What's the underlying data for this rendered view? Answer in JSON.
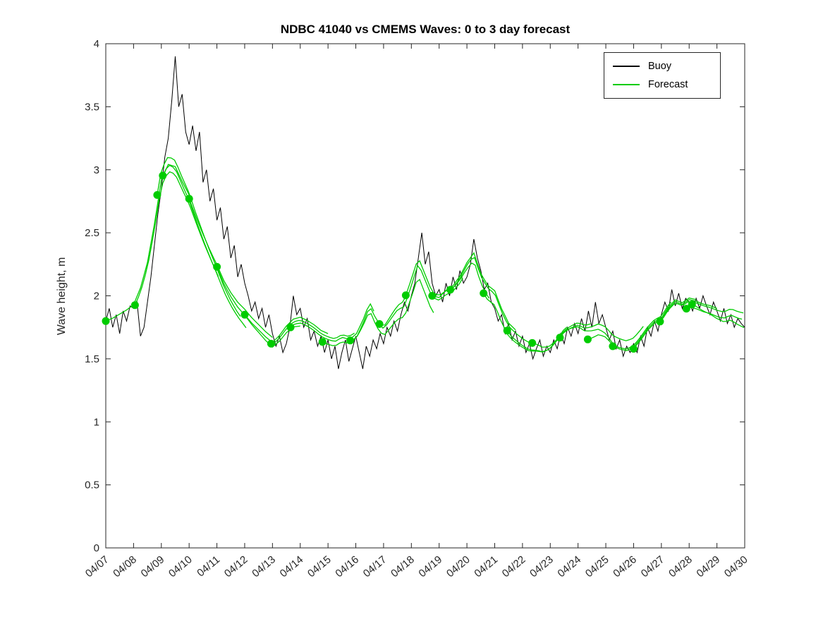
{
  "chart_data": {
    "type": "line",
    "title": "NDBC 41040 vs CMEMS Waves: 0 to 3 day forecast",
    "xlabel": "",
    "ylabel": "Wave height, m",
    "ylim": [
      0,
      4
    ],
    "yticks": [
      0,
      0.5,
      1,
      1.5,
      2,
      2.5,
      3,
      3.5,
      4
    ],
    "xlim_days": [
      0,
      23
    ],
    "xtick_labels": [
      "04/07",
      "04/08",
      "04/09",
      "04/10",
      "04/11",
      "04/12",
      "04/13",
      "04/14",
      "04/15",
      "04/16",
      "04/17",
      "04/18",
      "04/19",
      "04/20",
      "04/21",
      "04/22",
      "04/23",
      "04/24",
      "04/25",
      "04/26",
      "04/27",
      "04/28",
      "04/29",
      "04/30"
    ],
    "legend_position": "top-right",
    "grid": false,
    "legend": [
      {
        "label": "Buoy",
        "color": "#000000"
      },
      {
        "label": "Forecast",
        "color": "#00cc00"
      }
    ],
    "colors": {
      "buoy": "#000000",
      "forecast": "#00cc00",
      "axis": "#262626"
    },
    "forecast_horizon_days": 3,
    "buoy": {
      "start_day": 0,
      "dt_days": 0.125,
      "values": [
        1.8,
        1.9,
        1.75,
        1.85,
        1.7,
        1.88,
        1.8,
        1.92,
        1.9,
        1.95,
        1.68,
        1.75,
        1.95,
        2.15,
        2.4,
        2.65,
        2.85,
        3.1,
        3.25,
        3.55,
        3.9,
        3.5,
        3.6,
        3.3,
        3.2,
        3.35,
        3.15,
        3.3,
        2.9,
        3.0,
        2.75,
        2.85,
        2.6,
        2.7,
        2.45,
        2.55,
        2.3,
        2.4,
        2.15,
        2.25,
        2.1,
        2.0,
        1.88,
        1.95,
        1.82,
        1.9,
        1.75,
        1.85,
        1.7,
        1.6,
        1.68,
        1.55,
        1.62,
        1.75,
        2.0,
        1.85,
        1.9,
        1.75,
        1.82,
        1.65,
        1.72,
        1.6,
        1.68,
        1.55,
        1.65,
        1.5,
        1.6,
        1.42,
        1.55,
        1.65,
        1.48,
        1.58,
        1.68,
        1.55,
        1.42,
        1.6,
        1.52,
        1.65,
        1.58,
        1.7,
        1.62,
        1.75,
        1.68,
        1.8,
        1.72,
        1.85,
        1.95,
        1.88,
        2.0,
        2.1,
        2.3,
        2.5,
        2.25,
        2.35,
        2.1,
        2.0,
        2.05,
        1.95,
        2.1,
        2.0,
        2.15,
        2.05,
        2.2,
        2.1,
        2.15,
        2.25,
        2.45,
        2.3,
        2.2,
        2.05,
        2.1,
        1.95,
        1.9,
        1.8,
        1.85,
        1.7,
        1.78,
        1.65,
        1.72,
        1.6,
        1.68,
        1.55,
        1.62,
        1.5,
        1.58,
        1.65,
        1.52,
        1.6,
        1.55,
        1.65,
        1.58,
        1.7,
        1.62,
        1.75,
        1.68,
        1.78,
        1.7,
        1.82,
        1.72,
        1.88,
        1.75,
        1.95,
        1.78,
        1.85,
        1.75,
        1.65,
        1.72,
        1.58,
        1.65,
        1.52,
        1.6,
        1.55,
        1.62,
        1.55,
        1.68,
        1.6,
        1.75,
        1.68,
        1.8,
        1.72,
        1.85,
        1.95,
        1.88,
        2.05,
        1.92,
        2.02,
        1.9,
        1.98,
        1.95,
        1.88,
        1.98,
        1.9,
        2.0,
        1.92,
        1.85,
        1.95,
        1.88,
        1.8,
        1.9,
        1.78,
        1.85,
        1.75,
        1.82,
        1.78,
        1.75
      ]
    },
    "forecast_base": {
      "start_day": 0,
      "dt_days": 0.25,
      "values": [
        1.8,
        1.82,
        1.85,
        1.88,
        1.92,
        2.05,
        2.25,
        2.55,
        2.9,
        3.02,
        3.0,
        2.88,
        2.77,
        2.62,
        2.48,
        2.35,
        2.23,
        2.1,
        2.0,
        1.92,
        1.86,
        1.79,
        1.73,
        1.67,
        1.62,
        1.67,
        1.74,
        1.79,
        1.8,
        1.77,
        1.73,
        1.68,
        1.65,
        1.63,
        1.66,
        1.64,
        1.67,
        1.78,
        1.92,
        1.8,
        1.74,
        1.82,
        1.9,
        1.93,
        2.1,
        2.28,
        2.15,
        2.02,
        2.0,
        2.05,
        2.08,
        2.15,
        2.25,
        2.32,
        2.15,
        2.05,
        2.0,
        1.85,
        1.73,
        1.67,
        1.62,
        1.58,
        1.57,
        1.55,
        1.57,
        1.63,
        1.7,
        1.73,
        1.75,
        1.72,
        1.73,
        1.75,
        1.72,
        1.65,
        1.62,
        1.6,
        1.62,
        1.68,
        1.75,
        1.8,
        1.82,
        1.9,
        1.95,
        1.92,
        1.95,
        1.93,
        1.9,
        1.88,
        1.85,
        1.83,
        1.85,
        1.82,
        1.8,
        1.76,
        1.72,
        1.7
      ]
    },
    "forecasts": [
      {
        "start": 0.0,
        "o1": 0.0,
        "o2": 0.03
      },
      {
        "start": 1.05,
        "o1": -0.02,
        "o2": -0.05
      },
      {
        "start": 1.85,
        "o1": 0.11,
        "o2": -0.06
      },
      {
        "start": 2.05,
        "o1": 0.03,
        "o2": -0.1
      },
      {
        "start": 3.0,
        "o1": 0.0,
        "o2": 0.05
      },
      {
        "start": 4.0,
        "o1": 0.0,
        "o2": -0.04
      },
      {
        "start": 5.0,
        "o1": -0.01,
        "o2": 0.05
      },
      {
        "start": 5.95,
        "o1": -0.01,
        "o2": 0.04
      },
      {
        "start": 6.65,
        "o1": -0.02,
        "o2": 0.03
      },
      {
        "start": 7.8,
        "o1": -0.04,
        "o2": 0.03
      },
      {
        "start": 8.8,
        "o1": 0.0,
        "o2": -0.15
      },
      {
        "start": 9.85,
        "o1": 0.0,
        "o2": -0.05
      },
      {
        "start": 10.8,
        "o1": 0.04,
        "o2": -0.06
      },
      {
        "start": 11.75,
        "o1": -0.02,
        "o2": 0.06
      },
      {
        "start": 12.4,
        "o1": -0.02,
        "o2": 0.05
      },
      {
        "start": 13.6,
        "o1": -0.09,
        "o2": 0.04
      },
      {
        "start": 14.45,
        "o1": -0.03,
        "o2": 0.05
      },
      {
        "start": 15.35,
        "o1": 0.05,
        "o2": -0.03
      },
      {
        "start": 16.35,
        "o1": 0.01,
        "o2": 0.05
      },
      {
        "start": 17.35,
        "o1": -0.07,
        "o2": 0.03
      },
      {
        "start": 18.25,
        "o1": -0.05,
        "o2": 0.04
      },
      {
        "start": 19.0,
        "o1": -0.04,
        "o2": 0.05
      },
      {
        "start": 19.95,
        "o1": -0.02,
        "o2": 0.06
      },
      {
        "start": 20.9,
        "o1": -0.04,
        "o2": 0.03
      },
      {
        "start": 21.1,
        "o1": -0.01,
        "o2": -0.08
      }
    ]
  }
}
